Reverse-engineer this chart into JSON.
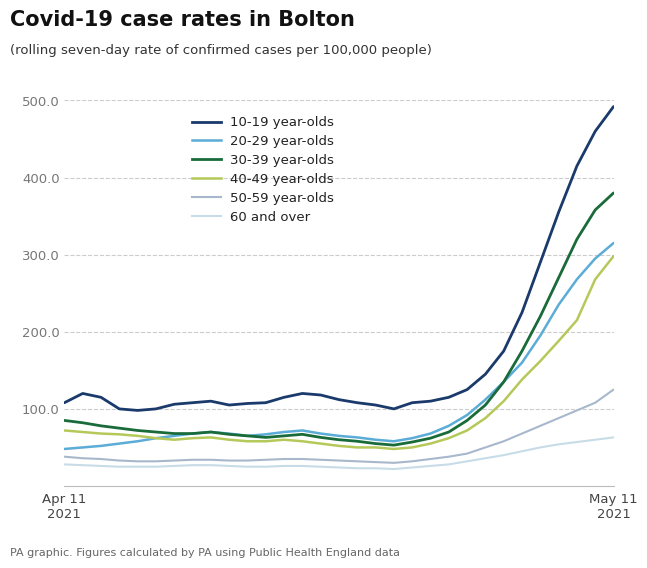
{
  "title": "Covid-19 case rates in Bolton",
  "subtitle": "(rolling seven-day rate of confirmed cases per 100,000 people)",
  "footer": "PA graphic. Figures calculated by PA using Public Health England data",
  "x_start_label": "Apr 11\n2021",
  "x_end_label": "May 11\n2021",
  "ylim": [
    0,
    500
  ],
  "yticks": [
    100.0,
    200.0,
    300.0,
    400.0,
    500.0
  ],
  "n_points": 31,
  "series": {
    "10-19 year-olds": {
      "color": "#1a3a6b",
      "linewidth": 2.0,
      "values": [
        108,
        120,
        115,
        100,
        98,
        100,
        106,
        108,
        110,
        105,
        107,
        108,
        115,
        120,
        118,
        112,
        108,
        105,
        100,
        108,
        110,
        115,
        125,
        145,
        175,
        225,
        290,
        355,
        415,
        460,
        492
      ]
    },
    "20-29 year-olds": {
      "color": "#5bacd6",
      "linewidth": 1.8,
      "values": [
        48,
        50,
        52,
        55,
        58,
        62,
        65,
        68,
        70,
        68,
        65,
        67,
        70,
        72,
        68,
        65,
        63,
        60,
        58,
        62,
        68,
        78,
        92,
        112,
        135,
        160,
        195,
        235,
        268,
        295,
        315
      ]
    },
    "30-39 year-olds": {
      "color": "#1a6b3a",
      "linewidth": 2.0,
      "values": [
        85,
        82,
        78,
        75,
        72,
        70,
        68,
        68,
        70,
        67,
        65,
        63,
        65,
        67,
        63,
        60,
        58,
        55,
        53,
        57,
        62,
        70,
        85,
        105,
        135,
        175,
        220,
        270,
        320,
        358,
        380
      ]
    },
    "40-49 year-olds": {
      "color": "#b5c95a",
      "linewidth": 1.8,
      "values": [
        72,
        70,
        68,
        67,
        65,
        62,
        60,
        62,
        63,
        60,
        58,
        58,
        60,
        58,
        55,
        52,
        50,
        50,
        48,
        50,
        55,
        62,
        72,
        88,
        110,
        138,
        162,
        188,
        215,
        268,
        298
      ]
    },
    "50-59 year-olds": {
      "color": "#a8b8cc",
      "linewidth": 1.5,
      "values": [
        38,
        36,
        35,
        33,
        32,
        32,
        33,
        34,
        34,
        33,
        33,
        34,
        35,
        35,
        34,
        33,
        32,
        31,
        30,
        32,
        35,
        38,
        42,
        50,
        58,
        68,
        78,
        88,
        98,
        108,
        125
      ]
    },
    "60 and over": {
      "color": "#c8dce8",
      "linewidth": 1.5,
      "values": [
        28,
        27,
        26,
        25,
        25,
        25,
        26,
        27,
        27,
        26,
        25,
        25,
        26,
        26,
        25,
        24,
        23,
        23,
        22,
        24,
        26,
        28,
        32,
        36,
        40,
        45,
        50,
        54,
        57,
        60,
        63
      ]
    }
  }
}
